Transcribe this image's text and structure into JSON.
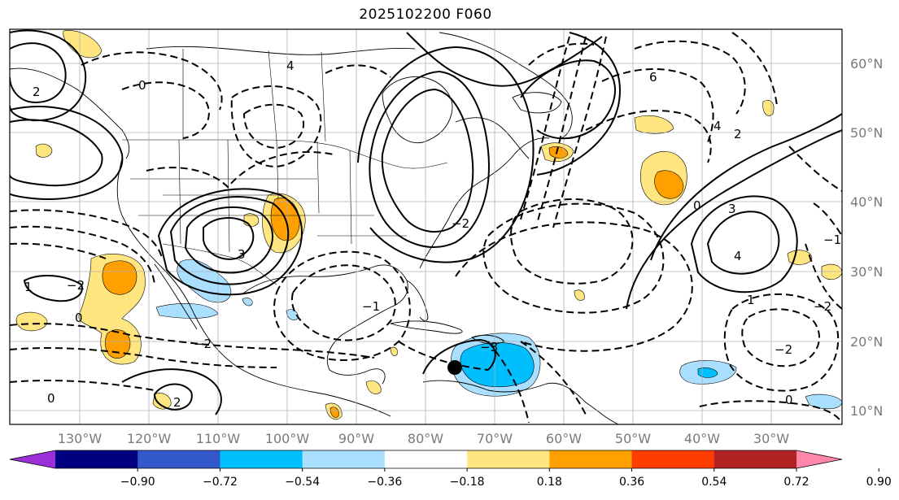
{
  "title": "2025102200 F060",
  "x_ticks": [
    "130°W",
    "120°W",
    "110°W",
    "100°W",
    "90°W",
    "80°W",
    "70°W",
    "60°W",
    "50°W",
    "40°W",
    "30°W"
  ],
  "y_ticks": [
    "60°N",
    "50°N",
    "40°N",
    "30°N",
    "20°N",
    "10°N"
  ],
  "colorbar": {
    "colors": [
      "#9b30d9",
      "#000080",
      "#3358cc",
      "#00bfff",
      "#aadfff",
      "#ffffff",
      "#ffe680",
      "#ffa000",
      "#ff3d00",
      "#b22222",
      "#ff88aa"
    ],
    "labels": [
      "−0.90",
      "−0.72",
      "−0.54",
      "−0.36",
      "−0.18",
      "0.18",
      "0.36",
      "0.54",
      "0.72",
      "0.90"
    ]
  },
  "contour_labels": [
    "4",
    "0",
    "2",
    "0",
    "1",
    "−2",
    "−2",
    "0",
    "2",
    "3",
    "−2",
    "6",
    "4",
    "2",
    "3",
    "4",
    "1",
    "0",
    "−1",
    "−2",
    "0",
    "−3",
    "−2",
    "−1"
  ],
  "colors": {
    "land_line": "#000000",
    "grid": "#b0b0b0",
    "blue_light": "#aadfff",
    "blue": "#00bfff",
    "yellow": "#ffe680",
    "orange": "#ffa000",
    "marker": "#000000"
  }
}
